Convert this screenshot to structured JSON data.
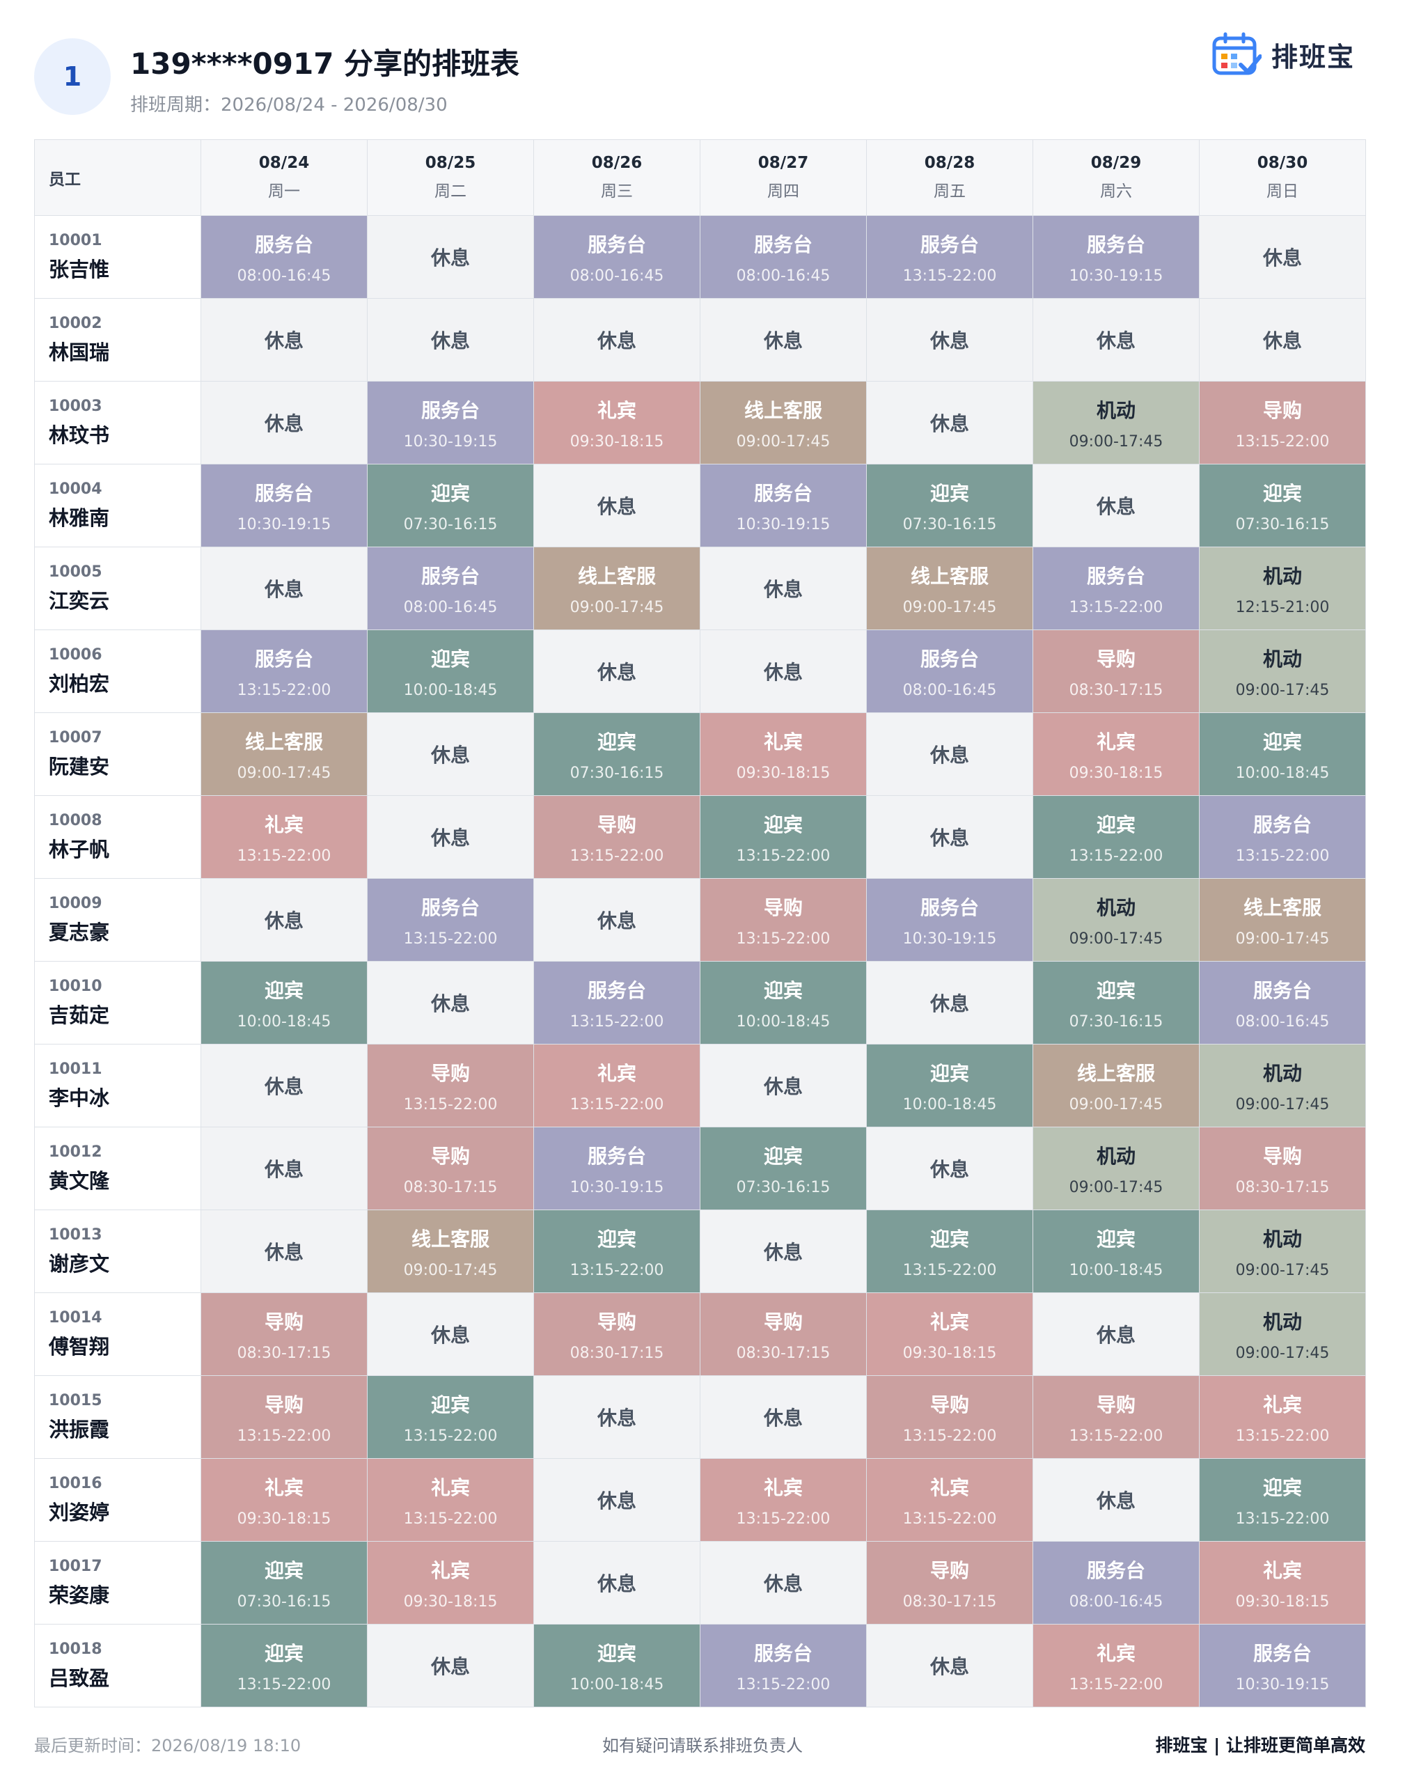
{
  "header": {
    "badge": "1",
    "title": "139****0917 分享的排班表",
    "period": "排班周期：2026/08/24 - 2026/08/30",
    "logo": "排班宝"
  },
  "table": {
    "corner": "员工",
    "columns": [
      {
        "date": "08/24",
        "weekday": "周一"
      },
      {
        "date": "08/25",
        "weekday": "周二"
      },
      {
        "date": "08/26",
        "weekday": "周三"
      },
      {
        "date": "08/27",
        "weekday": "周四"
      },
      {
        "date": "08/28",
        "weekday": "周五"
      },
      {
        "date": "08/29",
        "weekday": "周六"
      },
      {
        "date": "08/30",
        "weekday": "周日"
      }
    ],
    "rows": [
      {
        "id": "10001",
        "name": "张吉惟",
        "cells": [
          {
            "shift": "服务台",
            "time": "08:00-16:45",
            "color": "#a3a3c2"
          },
          {
            "shift": "休息",
            "color": "#f2f3f5"
          },
          {
            "shift": "服务台",
            "time": "08:00-16:45",
            "color": "#a3a3c2"
          },
          {
            "shift": "服务台",
            "time": "08:00-16:45",
            "color": "#a3a3c2"
          },
          {
            "shift": "服务台",
            "time": "13:15-22:00",
            "color": "#a3a3c2"
          },
          {
            "shift": "服务台",
            "time": "10:30-19:15",
            "color": "#a3a3c2"
          },
          {
            "shift": "休息",
            "color": "#f2f3f5"
          }
        ]
      },
      {
        "id": "10002",
        "name": "林国瑞",
        "cells": [
          {
            "shift": "休息",
            "color": "#f2f3f5"
          },
          {
            "shift": "休息",
            "color": "#f2f3f5"
          },
          {
            "shift": "休息",
            "color": "#f2f3f5"
          },
          {
            "shift": "休息",
            "color": "#f2f3f5"
          },
          {
            "shift": "休息",
            "color": "#f2f3f5"
          },
          {
            "shift": "休息",
            "color": "#f2f3f5"
          },
          {
            "shift": "休息",
            "color": "#f2f3f5"
          }
        ]
      },
      {
        "id": "10003",
        "name": "林玟书",
        "cells": [
          {
            "shift": "休息",
            "color": "#f2f3f5"
          },
          {
            "shift": "服务台",
            "time": "10:30-19:15",
            "color": "#a3a3c2"
          },
          {
            "shift": "礼宾",
            "time": "09:30-18:15",
            "color": "#d1a1a1"
          },
          {
            "shift": "线上客服",
            "time": "09:00-17:45",
            "color": "#b9a596"
          },
          {
            "shift": "休息",
            "color": "#f2f3f5"
          },
          {
            "shift": "机动",
            "time": "09:00-17:45",
            "color": "#b9c2b4"
          },
          {
            "shift": "导购",
            "time": "13:15-22:00",
            "color": "#cba0a0"
          }
        ]
      },
      {
        "id": "10004",
        "name": "林雅南",
        "cells": [
          {
            "shift": "服务台",
            "time": "10:30-19:15",
            "color": "#a3a3c2"
          },
          {
            "shift": "迎宾",
            "time": "07:30-16:15",
            "color": "#7d9d98"
          },
          {
            "shift": "休息",
            "color": "#f2f3f5"
          },
          {
            "shift": "服务台",
            "time": "10:30-19:15",
            "color": "#a3a3c2"
          },
          {
            "shift": "迎宾",
            "time": "07:30-16:15",
            "color": "#7d9d98"
          },
          {
            "shift": "休息",
            "color": "#f2f3f5"
          },
          {
            "shift": "迎宾",
            "time": "07:30-16:15",
            "color": "#7d9d98"
          }
        ]
      },
      {
        "id": "10005",
        "name": "江奕云",
        "cells": [
          {
            "shift": "休息",
            "color": "#f2f3f5"
          },
          {
            "shift": "服务台",
            "time": "08:00-16:45",
            "color": "#a3a3c2"
          },
          {
            "shift": "线上客服",
            "time": "09:00-17:45",
            "color": "#b9a596"
          },
          {
            "shift": "休息",
            "color": "#f2f3f5"
          },
          {
            "shift": "线上客服",
            "time": "09:00-17:45",
            "color": "#b9a596"
          },
          {
            "shift": "服务台",
            "time": "13:15-22:00",
            "color": "#a3a3c2"
          },
          {
            "shift": "机动",
            "time": "12:15-21:00",
            "color": "#b9c2b4"
          }
        ]
      },
      {
        "id": "10006",
        "name": "刘柏宏",
        "cells": [
          {
            "shift": "服务台",
            "time": "13:15-22:00",
            "color": "#a3a3c2"
          },
          {
            "shift": "迎宾",
            "time": "10:00-18:45",
            "color": "#7d9d98"
          },
          {
            "shift": "休息",
            "color": "#f2f3f5"
          },
          {
            "shift": "休息",
            "color": "#f2f3f5"
          },
          {
            "shift": "服务台",
            "time": "08:00-16:45",
            "color": "#a3a3c2"
          },
          {
            "shift": "导购",
            "time": "08:30-17:15",
            "color": "#cba0a0"
          },
          {
            "shift": "机动",
            "time": "09:00-17:45",
            "color": "#b9c2b4"
          }
        ]
      },
      {
        "id": "10007",
        "name": "阮建安",
        "cells": [
          {
            "shift": "线上客服",
            "time": "09:00-17:45",
            "color": "#b9a596"
          },
          {
            "shift": "休息",
            "color": "#f2f3f5"
          },
          {
            "shift": "迎宾",
            "time": "07:30-16:15",
            "color": "#7d9d98"
          },
          {
            "shift": "礼宾",
            "time": "09:30-18:15",
            "color": "#d1a1a1"
          },
          {
            "shift": "休息",
            "color": "#f2f3f5"
          },
          {
            "shift": "礼宾",
            "time": "09:30-18:15",
            "color": "#d1a1a1"
          },
          {
            "shift": "迎宾",
            "time": "10:00-18:45",
            "color": "#7d9d98"
          }
        ]
      },
      {
        "id": "10008",
        "name": "林子帆",
        "cells": [
          {
            "shift": "礼宾",
            "time": "13:15-22:00",
            "color": "#d1a1a1"
          },
          {
            "shift": "休息",
            "color": "#f2f3f5"
          },
          {
            "shift": "导购",
            "time": "13:15-22:00",
            "color": "#cba0a0"
          },
          {
            "shift": "迎宾",
            "time": "13:15-22:00",
            "color": "#7d9d98"
          },
          {
            "shift": "休息",
            "color": "#f2f3f5"
          },
          {
            "shift": "迎宾",
            "time": "13:15-22:00",
            "color": "#7d9d98"
          },
          {
            "shift": "服务台",
            "time": "13:15-22:00",
            "color": "#a3a3c2"
          }
        ]
      },
      {
        "id": "10009",
        "name": "夏志豪",
        "cells": [
          {
            "shift": "休息",
            "color": "#f2f3f5"
          },
          {
            "shift": "服务台",
            "time": "13:15-22:00",
            "color": "#a3a3c2"
          },
          {
            "shift": "休息",
            "color": "#f2f3f5"
          },
          {
            "shift": "导购",
            "time": "13:15-22:00",
            "color": "#cba0a0"
          },
          {
            "shift": "服务台",
            "time": "10:30-19:15",
            "color": "#a3a3c2"
          },
          {
            "shift": "机动",
            "time": "09:00-17:45",
            "color": "#b9c2b4"
          },
          {
            "shift": "线上客服",
            "time": "09:00-17:45",
            "color": "#b9a596"
          }
        ]
      },
      {
        "id": "10010",
        "name": "吉茹定",
        "cells": [
          {
            "shift": "迎宾",
            "time": "10:00-18:45",
            "color": "#7d9d98"
          },
          {
            "shift": "休息",
            "color": "#f2f3f5"
          },
          {
            "shift": "服务台",
            "time": "13:15-22:00",
            "color": "#a3a3c2"
          },
          {
            "shift": "迎宾",
            "time": "10:00-18:45",
            "color": "#7d9d98"
          },
          {
            "shift": "休息",
            "color": "#f2f3f5"
          },
          {
            "shift": "迎宾",
            "time": "07:30-16:15",
            "color": "#7d9d98"
          },
          {
            "shift": "服务台",
            "time": "08:00-16:45",
            "color": "#a3a3c2"
          }
        ]
      },
      {
        "id": "10011",
        "name": "李中冰",
        "cells": [
          {
            "shift": "休息",
            "color": "#f2f3f5"
          },
          {
            "shift": "导购",
            "time": "13:15-22:00",
            "color": "#cba0a0"
          },
          {
            "shift": "礼宾",
            "time": "13:15-22:00",
            "color": "#d1a1a1"
          },
          {
            "shift": "休息",
            "color": "#f2f3f5"
          },
          {
            "shift": "迎宾",
            "time": "10:00-18:45",
            "color": "#7d9d98"
          },
          {
            "shift": "线上客服",
            "time": "09:00-17:45",
            "color": "#b9a596"
          },
          {
            "shift": "机动",
            "time": "09:00-17:45",
            "color": "#b9c2b4"
          }
        ]
      },
      {
        "id": "10012",
        "name": "黄文隆",
        "cells": [
          {
            "shift": "休息",
            "color": "#f2f3f5"
          },
          {
            "shift": "导购",
            "time": "08:30-17:15",
            "color": "#cba0a0"
          },
          {
            "shift": "服务台",
            "time": "10:30-19:15",
            "color": "#a3a3c2"
          },
          {
            "shift": "迎宾",
            "time": "07:30-16:15",
            "color": "#7d9d98"
          },
          {
            "shift": "休息",
            "color": "#f2f3f5"
          },
          {
            "shift": "机动",
            "time": "09:00-17:45",
            "color": "#b9c2b4"
          },
          {
            "shift": "导购",
            "time": "08:30-17:15",
            "color": "#cba0a0"
          }
        ]
      },
      {
        "id": "10013",
        "name": "谢彦文",
        "cells": [
          {
            "shift": "休息",
            "color": "#f2f3f5"
          },
          {
            "shift": "线上客服",
            "time": "09:00-17:45",
            "color": "#b9a596"
          },
          {
            "shift": "迎宾",
            "time": "13:15-22:00",
            "color": "#7d9d98"
          },
          {
            "shift": "休息",
            "color": "#f2f3f5"
          },
          {
            "shift": "迎宾",
            "time": "13:15-22:00",
            "color": "#7d9d98"
          },
          {
            "shift": "迎宾",
            "time": "10:00-18:45",
            "color": "#7d9d98"
          },
          {
            "shift": "机动",
            "time": "09:00-17:45",
            "color": "#b9c2b4"
          }
        ]
      },
      {
        "id": "10014",
        "name": "傅智翔",
        "cells": [
          {
            "shift": "导购",
            "time": "08:30-17:15",
            "color": "#cba0a0"
          },
          {
            "shift": "休息",
            "color": "#f2f3f5"
          },
          {
            "shift": "导购",
            "time": "08:30-17:15",
            "color": "#cba0a0"
          },
          {
            "shift": "导购",
            "time": "08:30-17:15",
            "color": "#cba0a0"
          },
          {
            "shift": "礼宾",
            "time": "09:30-18:15",
            "color": "#d1a1a1"
          },
          {
            "shift": "休息",
            "color": "#f2f3f5"
          },
          {
            "shift": "机动",
            "time": "09:00-17:45",
            "color": "#b9c2b4"
          }
        ]
      },
      {
        "id": "10015",
        "name": "洪振霞",
        "cells": [
          {
            "shift": "导购",
            "time": "13:15-22:00",
            "color": "#cba0a0"
          },
          {
            "shift": "迎宾",
            "time": "13:15-22:00",
            "color": "#7d9d98"
          },
          {
            "shift": "休息",
            "color": "#f2f3f5"
          },
          {
            "shift": "休息",
            "color": "#f2f3f5"
          },
          {
            "shift": "导购",
            "time": "13:15-22:00",
            "color": "#cba0a0"
          },
          {
            "shift": "导购",
            "time": "13:15-22:00",
            "color": "#cba0a0"
          },
          {
            "shift": "礼宾",
            "time": "13:15-22:00",
            "color": "#d1a1a1"
          }
        ]
      },
      {
        "id": "10016",
        "name": "刘姿婷",
        "cells": [
          {
            "shift": "礼宾",
            "time": "09:30-18:15",
            "color": "#d1a1a1"
          },
          {
            "shift": "礼宾",
            "time": "13:15-22:00",
            "color": "#d1a1a1"
          },
          {
            "shift": "休息",
            "color": "#f2f3f5"
          },
          {
            "shift": "礼宾",
            "time": "13:15-22:00",
            "color": "#d1a1a1"
          },
          {
            "shift": "礼宾",
            "time": "13:15-22:00",
            "color": "#d1a1a1"
          },
          {
            "shift": "休息",
            "color": "#f2f3f5"
          },
          {
            "shift": "迎宾",
            "time": "13:15-22:00",
            "color": "#7d9d98"
          }
        ]
      },
      {
        "id": "10017",
        "name": "荣姿康",
        "cells": [
          {
            "shift": "迎宾",
            "time": "07:30-16:15",
            "color": "#7d9d98"
          },
          {
            "shift": "礼宾",
            "time": "09:30-18:15",
            "color": "#d1a1a1"
          },
          {
            "shift": "休息",
            "color": "#f2f3f5"
          },
          {
            "shift": "休息",
            "color": "#f2f3f5"
          },
          {
            "shift": "导购",
            "time": "08:30-17:15",
            "color": "#cba0a0"
          },
          {
            "shift": "服务台",
            "time": "08:00-16:45",
            "color": "#a3a3c2"
          },
          {
            "shift": "礼宾",
            "time": "09:30-18:15",
            "color": "#d1a1a1"
          }
        ]
      },
      {
        "id": "10018",
        "name": "吕致盈",
        "cells": [
          {
            "shift": "迎宾",
            "time": "13:15-22:00",
            "color": "#7d9d98"
          },
          {
            "shift": "休息",
            "color": "#f2f3f5"
          },
          {
            "shift": "迎宾",
            "time": "10:00-18:45",
            "color": "#7d9d98"
          },
          {
            "shift": "服务台",
            "time": "13:15-22:00",
            "color": "#a3a3c2"
          },
          {
            "shift": "休息",
            "color": "#f2f3f5"
          },
          {
            "shift": "礼宾",
            "time": "13:15-22:00",
            "color": "#d1a1a1"
          },
          {
            "shift": "服务台",
            "time": "10:30-19:15",
            "color": "#a3a3c2"
          }
        ]
      }
    ]
  },
  "footer": {
    "updated": "最后更新时间：2026/08/19 18:10",
    "note": "如有疑问请联系排班负责人",
    "brand": "排班宝 | 让排班更简单高效"
  }
}
